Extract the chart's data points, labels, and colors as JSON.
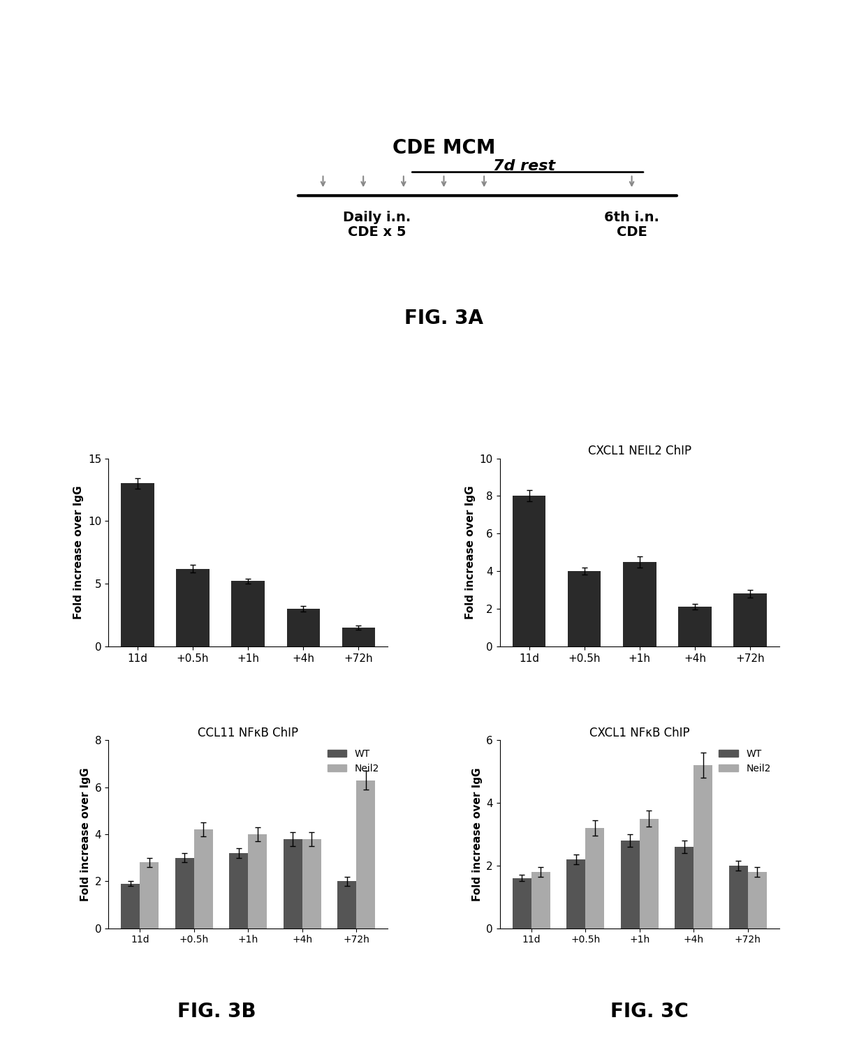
{
  "fig3a": {
    "title": "CDE MCM",
    "rest_label": "7d rest",
    "left_label1": "Daily i.n.",
    "left_label2": "CDE x 5",
    "right_label1": "6th i.n.",
    "right_label2": "CDE",
    "fig_label": "FIG. 3A"
  },
  "fig3b_top": {
    "title": "",
    "ylabel": "Fold increase over IgG",
    "xlabel": "",
    "categories": [
      "11d",
      "+0.5h",
      "+1h",
      "+4h",
      "+72h"
    ],
    "values": [
      13.0,
      6.2,
      5.2,
      3.0,
      1.5
    ],
    "errors": [
      0.4,
      0.3,
      0.2,
      0.2,
      0.15
    ],
    "ylim": [
      0,
      15
    ],
    "yticks": [
      0,
      5,
      10,
      15
    ],
    "bar_color": "#2a2a2a"
  },
  "fig3c_top": {
    "title": "CXCL1 NEIL2 ChIP",
    "ylabel": "Fold increase over IgG",
    "xlabel": "",
    "categories": [
      "11d",
      "+0.5h",
      "+1h",
      "+4h",
      "+72h"
    ],
    "values": [
      8.0,
      4.0,
      4.5,
      2.1,
      2.8
    ],
    "errors": [
      0.3,
      0.2,
      0.3,
      0.15,
      0.2
    ],
    "ylim": [
      0,
      10
    ],
    "yticks": [
      0,
      2,
      4,
      6,
      8,
      10
    ],
    "bar_color": "#2a2a2a"
  },
  "fig3b_bot": {
    "title": "CCL11 NFκB ChIP",
    "ylabel": "Fold increase over IgG",
    "xlabel": "",
    "categories": [
      "11d",
      "+0.5h",
      "+1h",
      "+4h",
      "+72h"
    ],
    "wt_values": [
      1.9,
      3.0,
      3.2,
      3.8,
      2.0
    ],
    "neil2_values": [
      2.8,
      4.2,
      4.0,
      3.8,
      6.3
    ],
    "wt_errors": [
      0.1,
      0.2,
      0.2,
      0.3,
      0.2
    ],
    "neil2_errors": [
      0.2,
      0.3,
      0.3,
      0.3,
      0.4
    ],
    "ylim": [
      0,
      8
    ],
    "yticks": [
      0,
      2,
      4,
      6,
      8
    ],
    "wt_color": "#555555",
    "neil2_color": "#aaaaaa",
    "legend": [
      "WT",
      "Neil2"
    ],
    "fig_label": "FIG. 3B"
  },
  "fig3c_bot": {
    "title": "CXCL1 NFκB ChIP",
    "ylabel": "Fold increase over IgG",
    "xlabel": "",
    "categories": [
      "11d",
      "+0.5h",
      "+1h",
      "+4h",
      "+72h"
    ],
    "wt_values": [
      1.6,
      2.2,
      2.8,
      2.6,
      2.0
    ],
    "neil2_values": [
      1.8,
      3.2,
      3.5,
      5.2,
      1.8
    ],
    "wt_errors": [
      0.1,
      0.15,
      0.2,
      0.2,
      0.15
    ],
    "neil2_errors": [
      0.15,
      0.25,
      0.25,
      0.4,
      0.15
    ],
    "ylim": [
      0,
      6
    ],
    "yticks": [
      0,
      2,
      4,
      6
    ],
    "wt_color": "#555555",
    "neil2_color": "#aaaaaa",
    "legend": [
      "WT",
      "Neil2"
    ],
    "fig_label": "FIG. 3C"
  }
}
